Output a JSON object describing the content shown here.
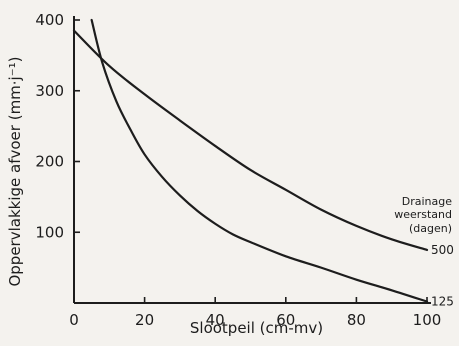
{
  "chart_data": {
    "type": "line",
    "xlabel": "Slootpeil (cm-mv)",
    "ylabel": "Oppervlakkige afvoer (mm·j⁻¹)",
    "xlim": [
      0,
      100
    ],
    "ylim": [
      0,
      400
    ],
    "x_ticks": [
      "0",
      "20",
      "40",
      "60",
      "80",
      "100"
    ],
    "y_ticks": [
      "100",
      "200",
      "300",
      "400"
    ],
    "legend_title": [
      "Drainage",
      "weerstand",
      "(dagen)"
    ],
    "series": [
      {
        "name": "500",
        "x": [
          0,
          10,
          20,
          30,
          40,
          50,
          60,
          70,
          80,
          90,
          100
        ],
        "y": [
          385,
          335,
          295,
          258,
          222,
          188,
          160,
          132,
          109,
          90,
          75
        ]
      },
      {
        "name": "125",
        "x": [
          5,
          8,
          12,
          16,
          20,
          25,
          30,
          35,
          40,
          45,
          50,
          60,
          70,
          80,
          90,
          100
        ],
        "y": [
          400,
          340,
          285,
          245,
          210,
          178,
          152,
          130,
          112,
          97,
          86,
          66,
          50,
          33,
          18,
          2
        ]
      }
    ]
  }
}
